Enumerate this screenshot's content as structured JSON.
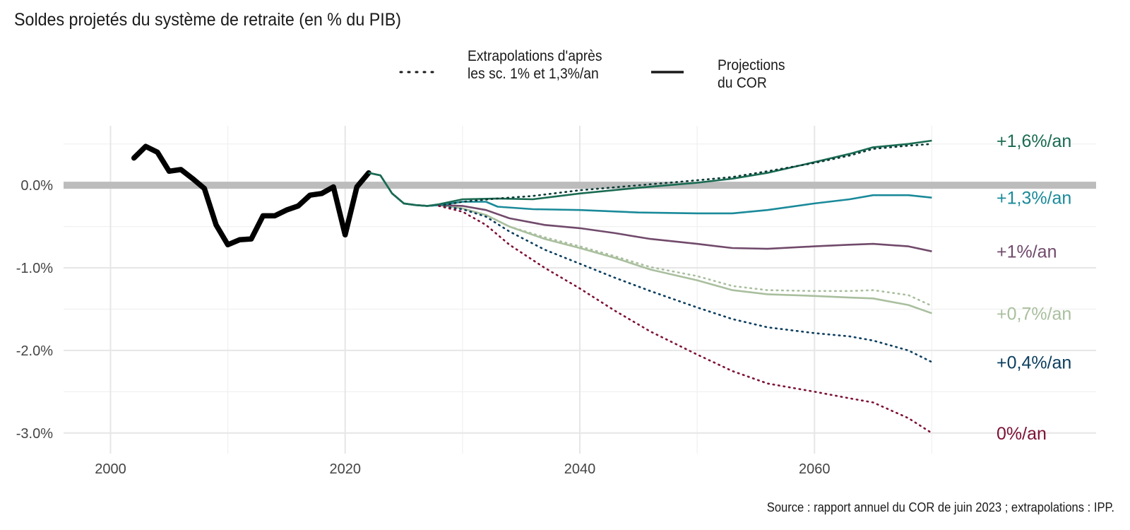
{
  "chart_data": {
    "type": "line",
    "title": "Soldes projetés du système de retraite (en % du PIB)",
    "source": "Source : rapport annuel du COR de juin 2023 ; extrapolations : IPP.",
    "xlim": [
      1996,
      2084
    ],
    "ylim": [
      -3.25,
      0.72
    ],
    "x_ticks": [
      2000,
      2020,
      2040,
      2060
    ],
    "y_ticks": [
      0,
      -1,
      -2,
      -3
    ],
    "y_tick_labels": [
      "0.0%",
      "-1.0%",
      "-2.0%",
      "-3.0%"
    ],
    "zero_line": 0,
    "grid": true,
    "legend_position": "top",
    "legend": [
      {
        "style": "dotted",
        "label": "Extrapolations d'après\nles sc. 1% et 1,3%/an"
      },
      {
        "style": "solid",
        "label": "Projections\ndu COR"
      }
    ],
    "historical": {
      "color": "#000000",
      "points": [
        [
          2002,
          0.33
        ],
        [
          2003,
          0.47
        ],
        [
          2004,
          0.4
        ],
        [
          2005,
          0.17
        ],
        [
          2006,
          0.19
        ],
        [
          2007,
          0.08
        ],
        [
          2008,
          -0.04
        ],
        [
          2009,
          -0.48
        ],
        [
          2010,
          -0.72
        ],
        [
          2011,
          -0.66
        ],
        [
          2012,
          -0.65
        ],
        [
          2013,
          -0.37
        ],
        [
          2014,
          -0.37
        ],
        [
          2015,
          -0.3
        ],
        [
          2016,
          -0.25
        ],
        [
          2017,
          -0.12
        ],
        [
          2018,
          -0.1
        ],
        [
          2019,
          -0.02
        ],
        [
          2020,
          -0.6
        ],
        [
          2021,
          -0.02
        ],
        [
          2022,
          0.15
        ]
      ]
    },
    "series": [
      {
        "label": "+1,6%/an",
        "color": "#1a6b52",
        "style": "solid",
        "points": [
          [
            2022,
            0.15
          ],
          [
            2023,
            0.12
          ],
          [
            2024,
            -0.1
          ],
          [
            2025,
            -0.22
          ],
          [
            2026,
            -0.24
          ],
          [
            2027,
            -0.25
          ],
          [
            2028,
            -0.23
          ],
          [
            2030,
            -0.17
          ],
          [
            2033,
            -0.16
          ],
          [
            2036,
            -0.17
          ],
          [
            2040,
            -0.1
          ],
          [
            2045,
            -0.03
          ],
          [
            2050,
            0.03
          ],
          [
            2053,
            0.08
          ],
          [
            2056,
            0.15
          ],
          [
            2060,
            0.28
          ],
          [
            2063,
            0.38
          ],
          [
            2065,
            0.46
          ],
          [
            2068,
            0.5
          ],
          [
            2070,
            0.54
          ]
        ]
      },
      {
        "label": "+1,3%/an",
        "color": "#1a8a9a",
        "style": "solid",
        "points": [
          [
            2022,
            0.15
          ],
          [
            2023,
            0.12
          ],
          [
            2024,
            -0.1
          ],
          [
            2025,
            -0.22
          ],
          [
            2026,
            -0.24
          ],
          [
            2027,
            -0.25
          ],
          [
            2028,
            -0.24
          ],
          [
            2030,
            -0.2
          ],
          [
            2032,
            -0.2
          ],
          [
            2033,
            -0.26
          ],
          [
            2036,
            -0.29
          ],
          [
            2040,
            -0.3
          ],
          [
            2045,
            -0.33
          ],
          [
            2050,
            -0.34
          ],
          [
            2053,
            -0.34
          ],
          [
            2056,
            -0.3
          ],
          [
            2060,
            -0.22
          ],
          [
            2063,
            -0.17
          ],
          [
            2065,
            -0.12
          ],
          [
            2068,
            -0.12
          ],
          [
            2070,
            -0.15
          ]
        ]
      },
      {
        "label": "+1%/an",
        "color": "#714a6b",
        "style": "solid",
        "points": [
          [
            2022,
            0.15
          ],
          [
            2023,
            0.12
          ],
          [
            2024,
            -0.1
          ],
          [
            2025,
            -0.22
          ],
          [
            2026,
            -0.24
          ],
          [
            2027,
            -0.25
          ],
          [
            2028,
            -0.24
          ],
          [
            2030,
            -0.25
          ],
          [
            2032,
            -0.3
          ],
          [
            2034,
            -0.4
          ],
          [
            2037,
            -0.48
          ],
          [
            2040,
            -0.52
          ],
          [
            2043,
            -0.58
          ],
          [
            2046,
            -0.65
          ],
          [
            2050,
            -0.71
          ],
          [
            2053,
            -0.76
          ],
          [
            2056,
            -0.77
          ],
          [
            2060,
            -0.74
          ],
          [
            2063,
            -0.72
          ],
          [
            2065,
            -0.71
          ],
          [
            2068,
            -0.74
          ],
          [
            2070,
            -0.8
          ]
        ]
      },
      {
        "label": "+0,7%/an",
        "color": "#a9bf9e",
        "style": "solid",
        "points": [
          [
            2022,
            0.15
          ],
          [
            2023,
            0.12
          ],
          [
            2024,
            -0.1
          ],
          [
            2025,
            -0.22
          ],
          [
            2026,
            -0.24
          ],
          [
            2027,
            -0.25
          ],
          [
            2028,
            -0.24
          ],
          [
            2030,
            -0.28
          ],
          [
            2032,
            -0.36
          ],
          [
            2034,
            -0.5
          ],
          [
            2037,
            -0.65
          ],
          [
            2040,
            -0.76
          ],
          [
            2043,
            -0.88
          ],
          [
            2046,
            -1.02
          ],
          [
            2050,
            -1.15
          ],
          [
            2053,
            -1.27
          ],
          [
            2056,
            -1.32
          ],
          [
            2060,
            -1.34
          ],
          [
            2063,
            -1.36
          ],
          [
            2065,
            -1.37
          ],
          [
            2068,
            -1.45
          ],
          [
            2070,
            -1.55
          ]
        ]
      },
      {
        "label": "+1,6%/an",
        "color": "#0a3b36",
        "style": "dotted",
        "extrapolation": true,
        "points": [
          [
            2028,
            -0.25
          ],
          [
            2030,
            -0.2
          ],
          [
            2033,
            -0.16
          ],
          [
            2036,
            -0.13
          ],
          [
            2040,
            -0.06
          ],
          [
            2045,
            0.0
          ],
          [
            2050,
            0.06
          ],
          [
            2053,
            0.1
          ],
          [
            2056,
            0.17
          ],
          [
            2060,
            0.27
          ],
          [
            2063,
            0.36
          ],
          [
            2065,
            0.44
          ],
          [
            2068,
            0.48
          ],
          [
            2070,
            0.5
          ]
        ]
      },
      {
        "label": "+0,7%/an",
        "color": "#a9bf9e",
        "style": "dotted",
        "extrapolation": true,
        "points": [
          [
            2028,
            -0.25
          ],
          [
            2030,
            -0.28
          ],
          [
            2032,
            -0.36
          ],
          [
            2034,
            -0.5
          ],
          [
            2037,
            -0.63
          ],
          [
            2040,
            -0.74
          ],
          [
            2043,
            -0.86
          ],
          [
            2046,
            -0.99
          ],
          [
            2050,
            -1.1
          ],
          [
            2053,
            -1.22
          ],
          [
            2056,
            -1.27
          ],
          [
            2060,
            -1.28
          ],
          [
            2063,
            -1.28
          ],
          [
            2065,
            -1.27
          ],
          [
            2068,
            -1.33
          ],
          [
            2070,
            -1.46
          ]
        ]
      },
      {
        "label": "+0,4%/an",
        "color": "#0a3d5e",
        "style": "dotted",
        "extrapolation": true,
        "points": [
          [
            2028,
            -0.25
          ],
          [
            2030,
            -0.29
          ],
          [
            2032,
            -0.38
          ],
          [
            2034,
            -0.56
          ],
          [
            2037,
            -0.78
          ],
          [
            2040,
            -0.95
          ],
          [
            2043,
            -1.12
          ],
          [
            2046,
            -1.28
          ],
          [
            2050,
            -1.48
          ],
          [
            2053,
            -1.62
          ],
          [
            2056,
            -1.72
          ],
          [
            2060,
            -1.79
          ],
          [
            2063,
            -1.83
          ],
          [
            2065,
            -1.88
          ],
          [
            2068,
            -2.0
          ],
          [
            2070,
            -2.14
          ]
        ]
      },
      {
        "label": "0%/an",
        "color": "#7d1136",
        "style": "dotted",
        "extrapolation": true,
        "points": [
          [
            2028,
            -0.25
          ],
          [
            2030,
            -0.32
          ],
          [
            2032,
            -0.48
          ],
          [
            2034,
            -0.72
          ],
          [
            2037,
            -1.0
          ],
          [
            2040,
            -1.25
          ],
          [
            2043,
            -1.52
          ],
          [
            2046,
            -1.77
          ],
          [
            2050,
            -2.05
          ],
          [
            2053,
            -2.25
          ],
          [
            2056,
            -2.4
          ],
          [
            2060,
            -2.5
          ],
          [
            2063,
            -2.58
          ],
          [
            2065,
            -2.63
          ],
          [
            2068,
            -2.82
          ],
          [
            2070,
            -3.0
          ]
        ]
      }
    ],
    "end_labels": [
      {
        "text": "+1,6%/an",
        "y": 0.54,
        "color": "#1a6b52"
      },
      {
        "text": "+1,3%/an",
        "y": -0.15,
        "color": "#1a8a9a"
      },
      {
        "text": "+1%/an",
        "y": -0.8,
        "color": "#714a6b"
      },
      {
        "text": "+0,7%/an",
        "y": -1.55,
        "color": "#a9bf9e"
      },
      {
        "text": "+0,4%/an",
        "y": -2.14,
        "color": "#0a3d5e"
      },
      {
        "text": "0%/an",
        "y": -3.0,
        "color": "#7d1136"
      }
    ]
  }
}
